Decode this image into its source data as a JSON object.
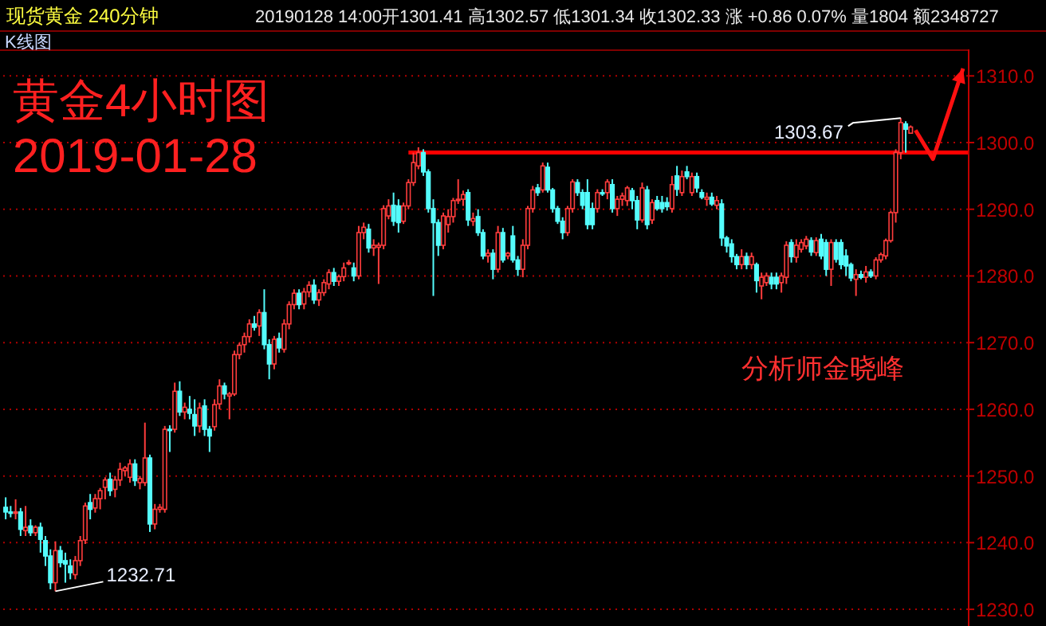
{
  "chart_data": {
    "type": "candlestick",
    "title": "黄金4小时图",
    "subtitle": "2019-01-28",
    "annotations": [
      "现货黄金 240分钟",
      "20190128 14:00开1301.41 高1302.57 低1301.34 收1302.33 涨 +0.86 0.07% 量1804 额2348727",
      "K线图",
      "分析师金晓峰",
      "1303.67",
      "1232.71"
    ],
    "categories": [
      null,
      null,
      null,
      null,
      null,
      null,
      null,
      null,
      null,
      null,
      null,
      null,
      null,
      null,
      null,
      null,
      null,
      null,
      null,
      null,
      null,
      null,
      null,
      null,
      null,
      null,
      null,
      null,
      null,
      null,
      null,
      null,
      null,
      null,
      null,
      null,
      null,
      null,
      null,
      null,
      null,
      null,
      null,
      null,
      null,
      null,
      null,
      null,
      null,
      null,
      null,
      null,
      null,
      null,
      null,
      null,
      null,
      null,
      null,
      null,
      null,
      null,
      null,
      null,
      null,
      null,
      null,
      null,
      null,
      null,
      null,
      null,
      null,
      null,
      null,
      null,
      null,
      null,
      null,
      null,
      null,
      null,
      null,
      null,
      null,
      null,
      null,
      null,
      null,
      null,
      null,
      null,
      null,
      null,
      null,
      null,
      null,
      null,
      null,
      null,
      null,
      null,
      null,
      null,
      null,
      null,
      null,
      null,
      null,
      null,
      null,
      null,
      null,
      null,
      null,
      null,
      null,
      null,
      null,
      null,
      null,
      null,
      null,
      null,
      null,
      null,
      null,
      null,
      null,
      null,
      null,
      null,
      null,
      null,
      null,
      null,
      null,
      null,
      null,
      null,
      null,
      null,
      null,
      null,
      null,
      null,
      null,
      null,
      null,
      null,
      null,
      null,
      null,
      null,
      null,
      null,
      null,
      null,
      null,
      null,
      null,
      null,
      null,
      null,
      null,
      null,
      null,
      null,
      null,
      null,
      null,
      null,
      null,
      null,
      null,
      null,
      null,
      null,
      null,
      null,
      null,
      null,
      null,
      null,
      null,
      null,
      null,
      null,
      null,
      null,
      null,
      null,
      null,
      null
    ],
    "colors": [
      "#54fcfc",
      "#54fcfc",
      "#ff3c3c",
      "#54fcfc",
      "#ff3c3c",
      "#54fcfc",
      "#ff3c3c",
      "#54fcfc",
      "#54fcfc",
      "#54fcfc",
      "#ff3c3c",
      "#54fcfc",
      "#54fcfc",
      "#54fcfc",
      "#ff3c3c",
      "#ff3c3c",
      "#ff3c3c",
      "#54fcfc",
      "#ff3c3c",
      "#ff3c3c",
      "#ff3c3c",
      "#54fcfc",
      "#ff3c3c",
      "#ff3c3c",
      "#ff3c3c",
      "#ff3c3c",
      "#54fcfc",
      "#ff3c3c",
      "#ff3c3c",
      "#54fcfc",
      "#ff3c3c",
      "#ff3c3c",
      "#ff3c3c",
      "#54fcfc",
      "#ff3c3c",
      "#54fcfc",
      "#ff3c3c",
      "#54fcfc",
      "#54fcfc",
      "#ff3c3c",
      "#54fcfc",
      "#54fcfc",
      "#ff3c3c",
      "#ff3c3c",
      "#54fcfc",
      "#ff3c3c",
      "#ff3c3c",
      "#ff3c3c",
      "#ff3c3c",
      "#ff3c3c",
      "#54fcfc",
      "#ff3c3c",
      "#54fcfc",
      "#54fcfc",
      "#ff3c3c",
      "#54fcfc",
      "#ff3c3c",
      "#ff3c3c",
      "#ff3c3c",
      "#54fcfc",
      "#ff3c3c",
      "#ff3c3c",
      "#54fcfc",
      "#ff3c3c",
      "#ff3c3c",
      "#ff3c3c",
      "#54fcfc",
      "#ff3c3c",
      "#ff3c3c",
      "#ff3c3c",
      "#54fcfc",
      "#ff3c3c",
      "#ff3c3c",
      "#54fcfc",
      "#ff3c3c",
      "#ff3c3c",
      "#ff3c3c",
      "#ff3c3c",
      "#54fcfc",
      "#54fcfc",
      "#ff3c3c",
      "#ff3c3c",
      "#ff3c3c",
      "#ff3c3c",
      "#54fcfc",
      "#54fcfc",
      "#54fcfc",
      "#54fcfc",
      "#ff3c3c",
      "#ff3c3c",
      "#ff3c3c",
      "#ff3c3c",
      "#ff3c3c",
      "#54fcfc",
      "#ff3c3c",
      "#54fcfc",
      "#54fcfc",
      "#ff3c3c",
      "#54fcfc",
      "#ff3c3c",
      "#54fcfc",
      "#ff3c3c",
      "#54fcfc",
      "#54fcfc",
      "#ff3c3c",
      "#ff3c3c",
      "#ff3c3c",
      "#54fcfc",
      "#ff3c3c",
      "#54fcfc",
      "#54fcfc",
      "#54fcfc",
      "#54fcfc",
      "#ff3c3c",
      "#ff3c3c",
      "#54fcfc",
      "#54fcfc",
      "#54fcfc",
      "#54fcfc",
      "#ff3c3c",
      "#54fcfc",
      "#ff3c3c",
      "#54fcfc",
      "#ff3c3c",
      "#ff3c3c",
      "#ff3c3c",
      "#54fcfc",
      "#54fcfc",
      "#ff3c3c",
      "#54fcfc",
      "#ff3c3c",
      "#54fcfc",
      "#54fcfc",
      "#54fcfc",
      "#ff3c3c",
      "#54fcfc",
      "#ff3c3c",
      "#54fcfc",
      "#ff3c3c",
      "#54fcfc",
      "#54fcfc",
      "#ff3c3c",
      "#54fcfc",
      "#ff3c3c",
      "#54fcfc",
      "#54fcfc",
      "#54fcfc",
      "#54fcfc",
      "#ff3c3c",
      "#54fcfc",
      "#ff3c3c",
      "#54fcfc",
      "#ff3c3c",
      "#ff3c3c",
      "#54fcfc",
      "#54fcfc",
      "#ff3c3c",
      "#ff3c3c",
      "#54fcfc",
      "#ff3c3c",
      "#ff3c3c",
      "#ff3c3c",
      "#54fcfc",
      "#ff3c3c",
      "#54fcfc",
      "#54fcfc",
      "#ff3c3c",
      "#54fcfc",
      "#54fcfc",
      "#54fcfc",
      "#54fcfc",
      "#ff3c3c",
      "#54fcfc",
      "#ff3c3c",
      "#54fcfc",
      "#ff3c3c",
      "#ff3c3c",
      "#ff3c3c",
      "#ff3c3c",
      "#ff3c3c",
      "#ff3c3c",
      "#54fcfc",
      "#ff3c3c",
      null,
      null,
      null,
      null,
      null,
      null,
      null,
      null,
      null,
      null,
      null
    ],
    "ohlc": [
      [
        1245.3,
        1246.8,
        1243.5,
        1244.6
      ],
      [
        1244.6,
        1245.5,
        1243.8,
        1244.4
      ],
      [
        1244.5,
        1246.5,
        1243.5,
        1244.6
      ],
      [
        1244.6,
        1245.2,
        1241.0,
        1242.0
      ],
      [
        1241.8,
        1245.5,
        1241.0,
        1242.3
      ],
      [
        1242.5,
        1243.5,
        1241.0,
        1241.5
      ],
      [
        1241.5,
        1242.6,
        1241.0,
        1242.3
      ],
      [
        1242.3,
        1243.0,
        1238.5,
        1240.5
      ],
      [
        1240.3,
        1241.0,
        1236.5,
        1238.0
      ],
      [
        1238.0,
        1239.0,
        1233.0,
        1234.0
      ],
      [
        1234.0,
        1240.2,
        1232.71,
        1238.8
      ],
      [
        1238.8,
        1239.5,
        1236.3,
        1237.0
      ],
      [
        1237.3,
        1238.5,
        1234.0,
        1236.8
      ],
      [
        1236.5,
        1237.5,
        1234.5,
        1235.5
      ],
      [
        1235.2,
        1238.0,
        1234.5,
        1237.3
      ],
      [
        1237.3,
        1241.0,
        1236.5,
        1240.3
      ],
      [
        1240.4,
        1246.0,
        1239.8,
        1245.5
      ],
      [
        1246.0,
        1247.3,
        1243.5,
        1245.0
      ],
      [
        1245.2,
        1247.3,
        1244.5,
        1246.6
      ],
      [
        1246.6,
        1248.2,
        1245.0,
        1247.8
      ],
      [
        1248.3,
        1249.8,
        1246.5,
        1249.4
      ],
      [
        1249.5,
        1250.5,
        1247.0,
        1247.8
      ],
      [
        1248.0,
        1250.0,
        1246.8,
        1249.4
      ],
      [
        1249.4,
        1252.0,
        1248.5,
        1251.0
      ],
      [
        1250.8,
        1251.5,
        1250.0,
        1251.2
      ],
      [
        1249.8,
        1252.5,
        1249.0,
        1251.8
      ],
      [
        1251.8,
        1252.5,
        1248.5,
        1249.3
      ],
      [
        1249.0,
        1250.0,
        1248.0,
        1249.6
      ],
      [
        1249.0,
        1258.0,
        1248.5,
        1252.7
      ],
      [
        1252.7,
        1253.2,
        1241.6,
        1242.8
      ],
      [
        1242.8,
        1245.8,
        1242.0,
        1245.0
      ],
      [
        1245.0,
        1245.8,
        1244.5,
        1245.3
      ],
      [
        1245.0,
        1257.5,
        1244.5,
        1257.0
      ],
      [
        1257.0,
        1257.6,
        1253.6,
        1256.9
      ],
      [
        1257.0,
        1264.0,
        1256.5,
        1262.7
      ],
      [
        1262.7,
        1264.2,
        1259.0,
        1259.6
      ],
      [
        1259.6,
        1261.0,
        1258.5,
        1260.3
      ],
      [
        1260.0,
        1262.0,
        1258.5,
        1259.4
      ],
      [
        1259.2,
        1261.5,
        1256.0,
        1257.5
      ],
      [
        1257.5,
        1261.0,
        1256.5,
        1260.2
      ],
      [
        1260.5,
        1261.5,
        1256.0,
        1257.0
      ],
      [
        1257.0,
        1257.5,
        1253.6,
        1256.0
      ],
      [
        1257.4,
        1261.5,
        1256.8,
        1260.7
      ],
      [
        1260.8,
        1264.5,
        1260.0,
        1263.5
      ],
      [
        1263.5,
        1264.0,
        1261.5,
        1262.3
      ],
      [
        1262.0,
        1262.6,
        1258.5,
        1262.3
      ],
      [
        1262.3,
        1268.8,
        1262.0,
        1268.2
      ],
      [
        1268.2,
        1270.0,
        1267.5,
        1269.6
      ],
      [
        1269.7,
        1271.5,
        1268.5,
        1270.9
      ],
      [
        1270.9,
        1273.5,
        1270.0,
        1272.8
      ],
      [
        1272.8,
        1274.0,
        1271.8,
        1272.3
      ],
      [
        1272.5,
        1275.0,
        1271.0,
        1274.5
      ],
      [
        1274.5,
        1278.0,
        1269.0,
        1269.7
      ],
      [
        1269.7,
        1270.5,
        1264.5,
        1266.8
      ],
      [
        1266.8,
        1271.0,
        1266.0,
        1270.5
      ],
      [
        1270.6,
        1271.5,
        1268.5,
        1269.2
      ],
      [
        1269.0,
        1273.5,
        1268.5,
        1272.8
      ],
      [
        1272.8,
        1276.2,
        1272.0,
        1275.7
      ],
      [
        1275.7,
        1278.0,
        1275.0,
        1277.4
      ],
      [
        1277.4,
        1278.0,
        1275.0,
        1275.7
      ],
      [
        1275.8,
        1278.2,
        1275.0,
        1277.6
      ],
      [
        1277.6,
        1279.2,
        1276.8,
        1278.6
      ],
      [
        1278.6,
        1279.5,
        1275.8,
        1276.4
      ],
      [
        1276.4,
        1278.0,
        1275.5,
        1277.5
      ],
      [
        1277.5,
        1279.5,
        1277.0,
        1279.0
      ],
      [
        1278.8,
        1281.0,
        1278.0,
        1280.5
      ],
      [
        1280.5,
        1281.2,
        1278.5,
        1279.2
      ],
      [
        1279.2,
        1280.2,
        1278.5,
        1279.9
      ],
      [
        1279.9,
        1282.0,
        1279.2,
        1281.2
      ],
      [
        1282.0,
        1282.4,
        1281.6,
        1282.0
      ],
      [
        1281.2,
        1282.0,
        1279.2,
        1280.0
      ],
      [
        1280.0,
        1287.5,
        1279.5,
        1286.5
      ],
      [
        1286.5,
        1288.0,
        1285.5,
        1287.3
      ],
      [
        1287.0,
        1287.8,
        1283.5,
        1284.2
      ],
      [
        1284.2,
        1285.5,
        1283.0,
        1284.6
      ],
      [
        1284.3,
        1285.0,
        1278.8,
        1284.6
      ],
      [
        1284.6,
        1290.6,
        1284.0,
        1290.1
      ],
      [
        1289.0,
        1291.5,
        1288.5,
        1290.5
      ],
      [
        1290.6,
        1292.5,
        1287.5,
        1288.2
      ],
      [
        1290.5,
        1291.5,
        1286.5,
        1288.0
      ],
      [
        1288.2,
        1291.0,
        1287.8,
        1290.5
      ],
      [
        1290.5,
        1294.5,
        1290.0,
        1294.0
      ],
      [
        1294.0,
        1298.5,
        1293.5,
        1297.0
      ],
      [
        1296.5,
        1299.3,
        1296.0,
        1298.5
      ],
      [
        1298.5,
        1299.0,
        1295.0,
        1295.6
      ],
      [
        1295.6,
        1296.0,
        1289.5,
        1290.1
      ],
      [
        1290.1,
        1291.5,
        1277.0,
        1288.0
      ],
      [
        1288.0,
        1288.5,
        1283.0,
        1284.6
      ],
      [
        1284.6,
        1289.5,
        1284.0,
        1289.0
      ],
      [
        1287.7,
        1290.0,
        1286.5,
        1288.9
      ],
      [
        1288.9,
        1291.7,
        1288.0,
        1291.3
      ],
      [
        1291.3,
        1294.5,
        1290.8,
        1291.5
      ],
      [
        1291.5,
        1292.8,
        1290.5,
        1292.2
      ],
      [
        1292.5,
        1293.0,
        1287.5,
        1288.4
      ],
      [
        1288.2,
        1289.5,
        1287.5,
        1288.6
      ],
      [
        1288.9,
        1290.0,
        1286.0,
        1286.5
      ],
      [
        1286.5,
        1287.0,
        1282.5,
        1283.0
      ],
      [
        1283.0,
        1284.0,
        1282.0,
        1283.4
      ],
      [
        1283.4,
        1284.0,
        1279.5,
        1281.0
      ],
      [
        1281.0,
        1287.5,
        1280.5,
        1286.5
      ],
      [
        1286.5,
        1287.2,
        1282.0,
        1282.4
      ],
      [
        1283.0,
        1283.6,
        1282.5,
        1283.4
      ],
      [
        1286.0,
        1287.5,
        1282.0,
        1282.4
      ],
      [
        1282.4,
        1283.0,
        1280.0,
        1281.0
      ],
      [
        1281.0,
        1285.5,
        1279.8,
        1284.6
      ],
      [
        1284.6,
        1290.5,
        1284.0,
        1290.1
      ],
      [
        1290.1,
        1293.5,
        1289.5,
        1292.9
      ],
      [
        1293.2,
        1293.8,
        1292.0,
        1292.5
      ],
      [
        1292.9,
        1297.0,
        1292.5,
        1296.5
      ],
      [
        1296.3,
        1297.0,
        1292.5,
        1292.9
      ],
      [
        1292.9,
        1293.2,
        1289.5,
        1290.1
      ],
      [
        1290.1,
        1290.5,
        1287.8,
        1288.2
      ],
      [
        1288.2,
        1288.8,
        1285.5,
        1286.5
      ],
      [
        1286.5,
        1290.5,
        1286.0,
        1290.1
      ],
      [
        1290.1,
        1294.5,
        1289.5,
        1294.1
      ],
      [
        1294.0,
        1294.5,
        1292.0,
        1292.5
      ],
      [
        1292.5,
        1293.0,
        1290.0,
        1290.6
      ],
      [
        1292.5,
        1294.5,
        1287.0,
        1287.7
      ],
      [
        1290.1,
        1291.0,
        1287.0,
        1287.7
      ],
      [
        1290.1,
        1293.0,
        1289.5,
        1292.5
      ],
      [
        1292.5,
        1293.0,
        1292.0,
        1292.3
      ],
      [
        1292.5,
        1294.5,
        1291.5,
        1294.1
      ],
      [
        1293.7,
        1294.5,
        1289.5,
        1290.1
      ],
      [
        1290.1,
        1292.0,
        1289.0,
        1291.5
      ],
      [
        1291.5,
        1292.5,
        1290.5,
        1292.0
      ],
      [
        1291.3,
        1293.5,
        1290.5,
        1293.2
      ],
      [
        1292.8,
        1293.2,
        1290.0,
        1291.3
      ],
      [
        1291.3,
        1292.0,
        1287.0,
        1288.4
      ],
      [
        1288.4,
        1294.0,
        1288.0,
        1293.2
      ],
      [
        1292.9,
        1293.5,
        1287.0,
        1287.7
      ],
      [
        1288.4,
        1291.5,
        1287.8,
        1291.0
      ],
      [
        1291.3,
        1292.0,
        1289.8,
        1290.1
      ],
      [
        1291.0,
        1292.0,
        1289.5,
        1290.1
      ],
      [
        1291.0,
        1291.8,
        1289.8,
        1290.4
      ],
      [
        1290.1,
        1295.0,
        1289.5,
        1293.7
      ],
      [
        1295.0,
        1296.5,
        1292.0,
        1293.0
      ],
      [
        1292.5,
        1295.8,
        1292.0,
        1294.9
      ],
      [
        1295.6,
        1296.5,
        1294.5,
        1294.9
      ],
      [
        1292.5,
        1295.5,
        1292.0,
        1294.9
      ],
      [
        1294.9,
        1295.5,
        1292.5,
        1293.2
      ],
      [
        1292.5,
        1293.0,
        1291.5,
        1291.8
      ],
      [
        1291.5,
        1292.5,
        1290.5,
        1291.8
      ],
      [
        1291.8,
        1292.5,
        1290.5,
        1290.8
      ],
      [
        1290.6,
        1292.0,
        1290.0,
        1291.3
      ],
      [
        1290.8,
        1291.5,
        1284.5,
        1285.7
      ],
      [
        1285.7,
        1286.0,
        1283.5,
        1284.5
      ],
      [
        1284.8,
        1285.5,
        1282.0,
        1282.9
      ],
      [
        1282.9,
        1283.3,
        1281.0,
        1281.7
      ],
      [
        1281.7,
        1284.0,
        1281.0,
        1282.9
      ],
      [
        1282.9,
        1283.5,
        1281.0,
        1281.7
      ],
      [
        1281.7,
        1283.5,
        1281.0,
        1282.9
      ],
      [
        1281.7,
        1282.0,
        1277.5,
        1279.3
      ],
      [
        1278.5,
        1280.5,
        1276.5,
        1279.8
      ],
      [
        1279.0,
        1280.5,
        1278.5,
        1280.0
      ],
      [
        1279.8,
        1280.5,
        1278.0,
        1278.8
      ],
      [
        1279.8,
        1280.5,
        1278.0,
        1278.8
      ],
      [
        1279.0,
        1280.5,
        1277.5,
        1280.0
      ],
      [
        1279.8,
        1285.2,
        1278.8,
        1284.6
      ],
      [
        1285.0,
        1285.5,
        1282.0,
        1282.9
      ],
      [
        1282.8,
        1285.5,
        1282.0,
        1284.6
      ],
      [
        1284.0,
        1285.5,
        1283.5,
        1285.0
      ],
      [
        1284.5,
        1286.0,
        1284.0,
        1285.5
      ],
      [
        1285.3,
        1285.8,
        1283.0,
        1283.6
      ],
      [
        1283.5,
        1285.8,
        1283.0,
        1285.3
      ],
      [
        1285.5,
        1286.3,
        1282.5,
        1283.0
      ],
      [
        1285.0,
        1285.5,
        1280.0,
        1281.0
      ],
      [
        1281.0,
        1285.5,
        1278.5,
        1285.0
      ],
      [
        1285.0,
        1285.5,
        1282.0,
        1282.5
      ],
      [
        1285.0,
        1285.5,
        1281.0,
        1281.7
      ],
      [
        1283.0,
        1284.0,
        1280.0,
        1281.5
      ],
      [
        1281.7,
        1282.0,
        1279.2,
        1279.7
      ],
      [
        1279.5,
        1281.0,
        1277.0,
        1280.2
      ],
      [
        1280.2,
        1280.8,
        1279.5,
        1279.8
      ],
      [
        1279.8,
        1281.5,
        1279.0,
        1280.6
      ],
      [
        1280.6,
        1281.0,
        1279.7,
        1280.0
      ],
      [
        1280.0,
        1282.8,
        1279.5,
        1282.4
      ],
      [
        1282.4,
        1283.5,
        1282.0,
        1283.2
      ],
      [
        1283.0,
        1285.6,
        1282.5,
        1285.3
      ],
      [
        1285.3,
        1289.8,
        1285.0,
        1289.5
      ],
      [
        1289.5,
        1299.0,
        1288.0,
        1298.5
      ],
      [
        1298.5,
        1303.67,
        1297.5,
        1303.0
      ],
      [
        1302.8,
        1303.2,
        1298.5,
        1302.0
      ],
      [
        1301.41,
        1302.57,
        1301.34,
        1302.33
      ],
      null,
      null,
      null,
      null,
      null,
      null,
      null,
      null,
      null,
      null,
      null
    ],
    "ylim": [
      1227.5,
      1313.5
    ],
    "yticks": [
      {
        "value": 1230,
        "label": "1230.0"
      },
      {
        "value": 1240,
        "label": "1240.0"
      },
      {
        "value": 1250,
        "label": "1250.0"
      },
      {
        "value": 1260,
        "label": "1260.0"
      },
      {
        "value": 1270,
        "label": "1270.0"
      },
      {
        "value": 1280,
        "label": "1280.0"
      },
      {
        "value": 1290,
        "label": "1290.0"
      },
      {
        "value": 1300,
        "label": "1300.0"
      },
      {
        "value": 1310,
        "label": "1310.0"
      }
    ],
    "grid": "y",
    "tick_labels": "y",
    "ref_lines": [
      {
        "axis": "y",
        "value": 1298.5,
        "color": "#ff0000"
      }
    ]
  }
}
